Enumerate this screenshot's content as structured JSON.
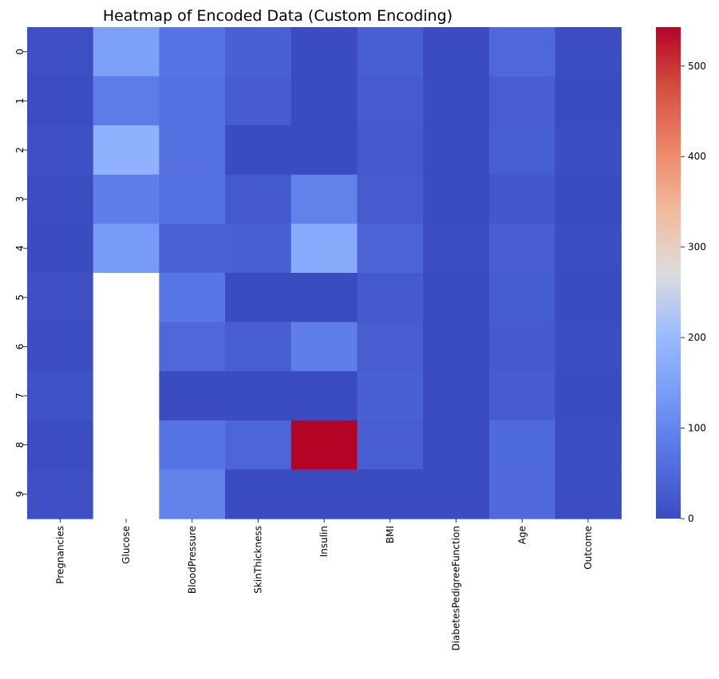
{
  "chart_data": {
    "type": "heatmap",
    "title": "Heatmap of Encoded Data (Custom Encoding)",
    "xlabel": "",
    "ylabel": "",
    "columns": [
      "Pregnancies",
      "Glucose",
      "BloodPressure",
      "SkinThickness",
      "Insulin",
      "BMI",
      "DiabetesPedigreeFunction",
      "Age",
      "Outcome"
    ],
    "rows": [
      "0",
      "1",
      "2",
      "3",
      "4",
      "5",
      "6",
      "7",
      "8",
      "9"
    ],
    "values": [
      [
        6,
        148,
        72,
        35,
        0,
        33.6,
        0.627,
        50,
        1
      ],
      [
        1,
        85,
        66,
        29,
        0,
        26.6,
        0.351,
        31,
        0
      ],
      [
        8,
        183,
        64,
        0,
        0,
        23.3,
        0.672,
        32,
        1
      ],
      [
        1,
        89,
        66,
        23,
        94,
        28.1,
        0.167,
        21,
        0
      ],
      [
        0,
        137,
        40,
        35,
        168,
        43.1,
        2.288,
        33,
        1
      ],
      [
        5,
        null,
        74,
        0,
        0,
        25.6,
        0.201,
        30,
        0
      ],
      [
        3,
        null,
        50,
        32,
        88,
        31.0,
        0.248,
        26,
        1
      ],
      [
        10,
        null,
        0,
        0,
        0,
        35.3,
        0.134,
        29,
        0
      ],
      [
        2,
        null,
        70,
        45,
        543,
        30.5,
        0.158,
        53,
        1
      ],
      [
        8,
        null,
        96,
        0,
        0,
        0,
        0.232,
        54,
        1
      ]
    ],
    "colormap": "coolwarm",
    "colorbar": {
      "range": [
        0,
        543
      ],
      "ticks": [
        0,
        100,
        200,
        300,
        400,
        500
      ]
    },
    "missing_color": "#ffffff"
  }
}
